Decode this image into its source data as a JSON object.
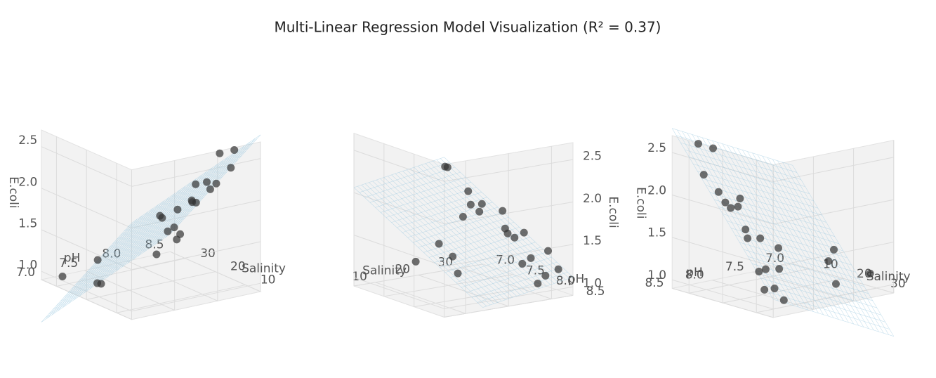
{
  "chart_data": {
    "type": "scatter3d",
    "title": "Multi-Linear Regression Model Visualization (R² = 0.37)",
    "x_label": "Salinity",
    "y_label": "pH",
    "z_label": "E.coli",
    "xlim": [
      5,
      35
    ],
    "xticks": [
      10,
      20,
      30
    ],
    "ylim": [
      7.0,
      8.5
    ],
    "yticks": [
      {
        "value": 7.0,
        "label": "7.0"
      },
      {
        "value": 7.5,
        "label": "7.5"
      },
      {
        "value": 8.0,
        "label": "8.0"
      },
      {
        "value": 8.5,
        "label": "8.5"
      }
    ],
    "zlim": [
      0.9,
      2.7
    ],
    "zticks": [
      {
        "value": 1.0,
        "label": "1.0"
      },
      {
        "value": 1.5,
        "label": "1.5"
      },
      {
        "value": 2.0,
        "label": "2.0"
      },
      {
        "value": 2.5,
        "label": "2.5"
      }
    ],
    "plane_color": "#9ecae1",
    "series": [
      {
        "color": "#333333",
        "x": [
          8,
          10,
          12,
          14,
          15,
          16,
          18,
          20,
          22,
          24,
          25,
          26,
          27,
          28,
          30,
          31,
          32,
          33,
          18,
          22,
          25,
          28
        ],
        "y": [
          8.3,
          8.2,
          8.4,
          8.3,
          8.1,
          8.3,
          8.2,
          8.4,
          8.3,
          8.2,
          8.4,
          8.3,
          8.1,
          8.3,
          8.4,
          8.2,
          8.3,
          8.4,
          7.1,
          7.2,
          7.3,
          7.0
        ],
        "z": [
          2.6,
          2.55,
          2.3,
          2.1,
          1.9,
          2.0,
          2.05,
          2.0,
          1.75,
          1.65,
          1.7,
          1.3,
          1.55,
          1.35,
          1.15,
          1.0,
          1.4,
          1.2,
          1.1,
          1.3,
          0.95,
          1.05
        ]
      }
    ]
  }
}
